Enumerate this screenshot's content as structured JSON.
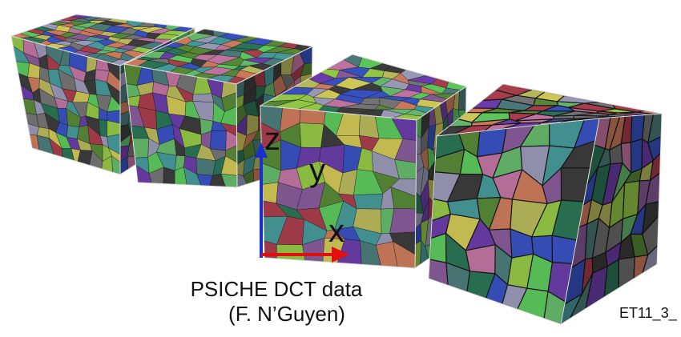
{
  "axis_labels": {
    "z": "z",
    "y": "y",
    "x": "x"
  },
  "caption": {
    "line1": "PSICHE DCT data",
    "line2": "(F. N’Guyen)"
  },
  "corner_label": "ET11_3_"
}
